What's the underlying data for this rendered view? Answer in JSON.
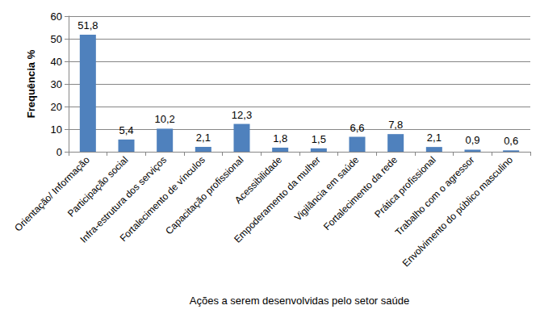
{
  "chart_data": {
    "type": "bar",
    "x_label": "Ações a serem desenvolvidas pelo setor saúde",
    "y_label": "Frequência %",
    "categories": [
      "Orientação/ Informação",
      "Participação social",
      "Infra-estrutura dos serviços",
      "Fortalecimento de vínculos",
      "Capacitação profissional",
      "Acessibilidade",
      "Empoderamento da mulher",
      "Vigilância em saúde",
      "Fortalecimento da rede",
      "Prática profissional",
      "Trabalho com o agressor",
      "Envolvimento do público masculino"
    ],
    "values": [
      51.8,
      5.4,
      10.2,
      2.1,
      12.3,
      1.8,
      1.5,
      6.6,
      7.8,
      2.1,
      0.9,
      0.6
    ],
    "value_labels": [
      "51,8",
      "5,4",
      "10,2",
      "2,1",
      "12,3",
      "1,8",
      "1,5",
      "6,6",
      "7,8",
      "2,1",
      "0,9",
      "0,6"
    ],
    "color": "#4f81bd",
    "ylim": [
      0,
      60
    ],
    "yticks": [
      0,
      10,
      20,
      30,
      40,
      50,
      60
    ],
    "grid": true,
    "data_labels": true
  }
}
